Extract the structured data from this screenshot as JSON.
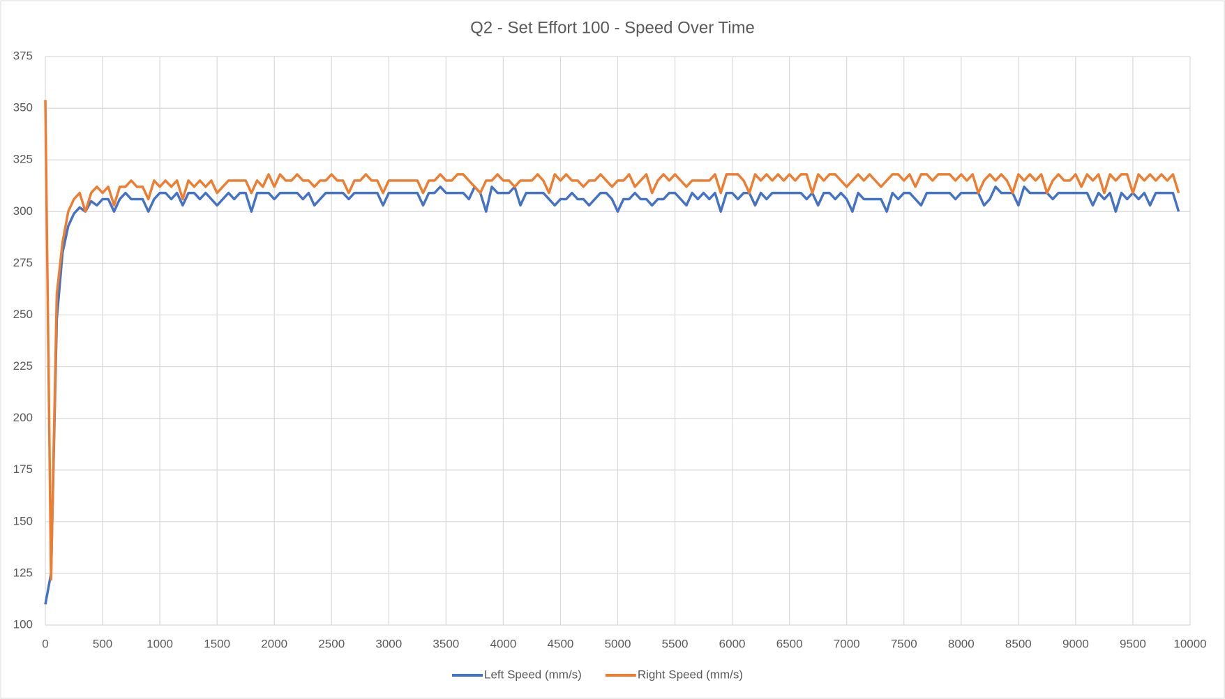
{
  "chart_data": {
    "type": "line",
    "title": "Q2 - Set Effort 100 - Speed Over Time",
    "x": [
      0,
      50,
      100,
      150,
      200,
      250,
      300,
      350,
      400,
      450,
      500,
      550,
      600,
      650,
      700,
      750,
      800,
      850,
      900,
      950,
      1000,
      1050,
      1100,
      1150,
      1200,
      1250,
      1300,
      1350,
      1400,
      1450,
      1500,
      1550,
      1600,
      1650,
      1700,
      1750,
      1800,
      1850,
      1900,
      1950,
      2000,
      2050,
      2100,
      2150,
      2200,
      2250,
      2300,
      2350,
      2400,
      2450,
      2500,
      2550,
      2600,
      2650,
      2700,
      2750,
      2800,
      2850,
      2900,
      2950,
      3000,
      3050,
      3100,
      3150,
      3200,
      3250,
      3300,
      3350,
      3400,
      3450,
      3500,
      3550,
      3600,
      3650,
      3700,
      3750,
      3800,
      3850,
      3900,
      3950,
      4000,
      4050,
      4100,
      4150,
      4200,
      4250,
      4300,
      4350,
      4400,
      4450,
      4500,
      4550,
      4600,
      4650,
      4700,
      4750,
      4800,
      4850,
      4900,
      4950,
      5000,
      5050,
      5100,
      5150,
      5200,
      5250,
      5300,
      5350,
      5400,
      5450,
      5500,
      5550,
      5600,
      5650,
      5700,
      5750,
      5800,
      5850,
      5900,
      5950,
      6000,
      6050,
      6100,
      6150,
      6200,
      6250,
      6300,
      6350,
      6400,
      6450,
      6500,
      6550,
      6600,
      6650,
      6700,
      6750,
      6800,
      6850,
      6900,
      6950,
      7000,
      7050,
      7100,
      7150,
      7200,
      7250,
      7300,
      7350,
      7400,
      7450,
      7500,
      7550,
      7600,
      7650,
      7700,
      7750,
      7800,
      7850,
      7900,
      7950,
      8000,
      8050,
      8100,
      8150,
      8200,
      8250,
      8300,
      8350,
      8400,
      8450,
      8500,
      8550,
      8600,
      8650,
      8700,
      8750,
      8800,
      8850,
      8900,
      8950,
      9000,
      9050,
      9100,
      9150,
      9200,
      9250,
      9300,
      9350,
      9400,
      9450,
      9500,
      9550,
      9600,
      9650,
      9700,
      9750,
      9800,
      9850,
      9900
    ],
    "series": [
      {
        "name": "Left Speed (mm/s)",
        "color": "#4472c4",
        "values": [
          110,
          125,
          248,
          280,
          293,
          299,
          302,
          300,
          305,
          303,
          306,
          306,
          300,
          306,
          309,
          306,
          306,
          306,
          300,
          306,
          309,
          309,
          306,
          309,
          303,
          309,
          309,
          306,
          309,
          306,
          303,
          306,
          309,
          306,
          309,
          309,
          300,
          309,
          309,
          309,
          306,
          309,
          309,
          309,
          309,
          306,
          309,
          303,
          306,
          309,
          309,
          309,
          309,
          306,
          309,
          309,
          309,
          309,
          309,
          303,
          309,
          309,
          309,
          309,
          309,
          309,
          303,
          309,
          309,
          312,
          309,
          309,
          309,
          309,
          306,
          312,
          309,
          300,
          312,
          309,
          309,
          309,
          312,
          303,
          309,
          309,
          309,
          309,
          306,
          303,
          306,
          306,
          309,
          306,
          306,
          303,
          306,
          309,
          309,
          306,
          300,
          306,
          306,
          309,
          306,
          306,
          303,
          306,
          306,
          309,
          309,
          306,
          303,
          309,
          306,
          309,
          306,
          309,
          300,
          309,
          309,
          306,
          309,
          309,
          303,
          309,
          306,
          309,
          309,
          309,
          309,
          309,
          309,
          306,
          309,
          303,
          309,
          309,
          306,
          309,
          306,
          300,
          309,
          306,
          306,
          306,
          306,
          300,
          309,
          306,
          309,
          309,
          306,
          303,
          309,
          309,
          309,
          309,
          309,
          306,
          309,
          309,
          309,
          309,
          303,
          306,
          312,
          309,
          309,
          309,
          303,
          312,
          309,
          309,
          309,
          309,
          306,
          309,
          309,
          309,
          309,
          309,
          309,
          303,
          309,
          306,
          309,
          300,
          309,
          306,
          309,
          306,
          309,
          303,
          309,
          309,
          309,
          309,
          300
        ]
      },
      {
        "name": "Right Speed (mm/s)",
        "color": "#ed7d31",
        "values": [
          354,
          122,
          260,
          285,
          300,
          306,
          309,
          300,
          309,
          312,
          309,
          312,
          303,
          312,
          312,
          315,
          312,
          312,
          306,
          315,
          312,
          315,
          312,
          315,
          306,
          315,
          312,
          315,
          312,
          315,
          309,
          312,
          315,
          315,
          315,
          315,
          309,
          315,
          312,
          318,
          312,
          318,
          315,
          315,
          318,
          315,
          315,
          312,
          315,
          315,
          318,
          315,
          315,
          309,
          315,
          315,
          318,
          315,
          315,
          309,
          315,
          315,
          315,
          315,
          315,
          315,
          309,
          315,
          315,
          318,
          315,
          315,
          318,
          318,
          315,
          312,
          309,
          315,
          315,
          318,
          315,
          315,
          312,
          315,
          315,
          315,
          318,
          315,
          309,
          318,
          315,
          318,
          315,
          315,
          312,
          315,
          315,
          318,
          315,
          312,
          315,
          315,
          318,
          312,
          315,
          318,
          309,
          315,
          318,
          315,
          318,
          315,
          312,
          315,
          315,
          315,
          315,
          318,
          309,
          318,
          318,
          318,
          315,
          309,
          318,
          315,
          318,
          315,
          318,
          315,
          318,
          315,
          318,
          318,
          309,
          318,
          315,
          318,
          318,
          315,
          312,
          315,
          318,
          315,
          318,
          315,
          312,
          315,
          318,
          318,
          315,
          318,
          312,
          318,
          318,
          315,
          318,
          318,
          318,
          315,
          318,
          315,
          318,
          309,
          315,
          318,
          315,
          318,
          315,
          309,
          318,
          315,
          318,
          315,
          318,
          309,
          315,
          318,
          315,
          315,
          318,
          312,
          318,
          315,
          318,
          309,
          318,
          315,
          318,
          318,
          309,
          318,
          315,
          318,
          315,
          318,
          315,
          318,
          309
        ]
      }
    ],
    "xlim": [
      0,
      10000
    ],
    "xticks": [
      0,
      500,
      1000,
      1500,
      2000,
      2500,
      3000,
      3500,
      4000,
      4500,
      5000,
      5500,
      6000,
      6500,
      7000,
      7500,
      8000,
      8500,
      9000,
      9500,
      10000
    ],
    "ylim": [
      100,
      375
    ],
    "yticks": [
      100,
      125,
      150,
      175,
      200,
      225,
      250,
      275,
      300,
      325,
      350,
      375
    ],
    "grid": true,
    "legend": "bottom"
  }
}
